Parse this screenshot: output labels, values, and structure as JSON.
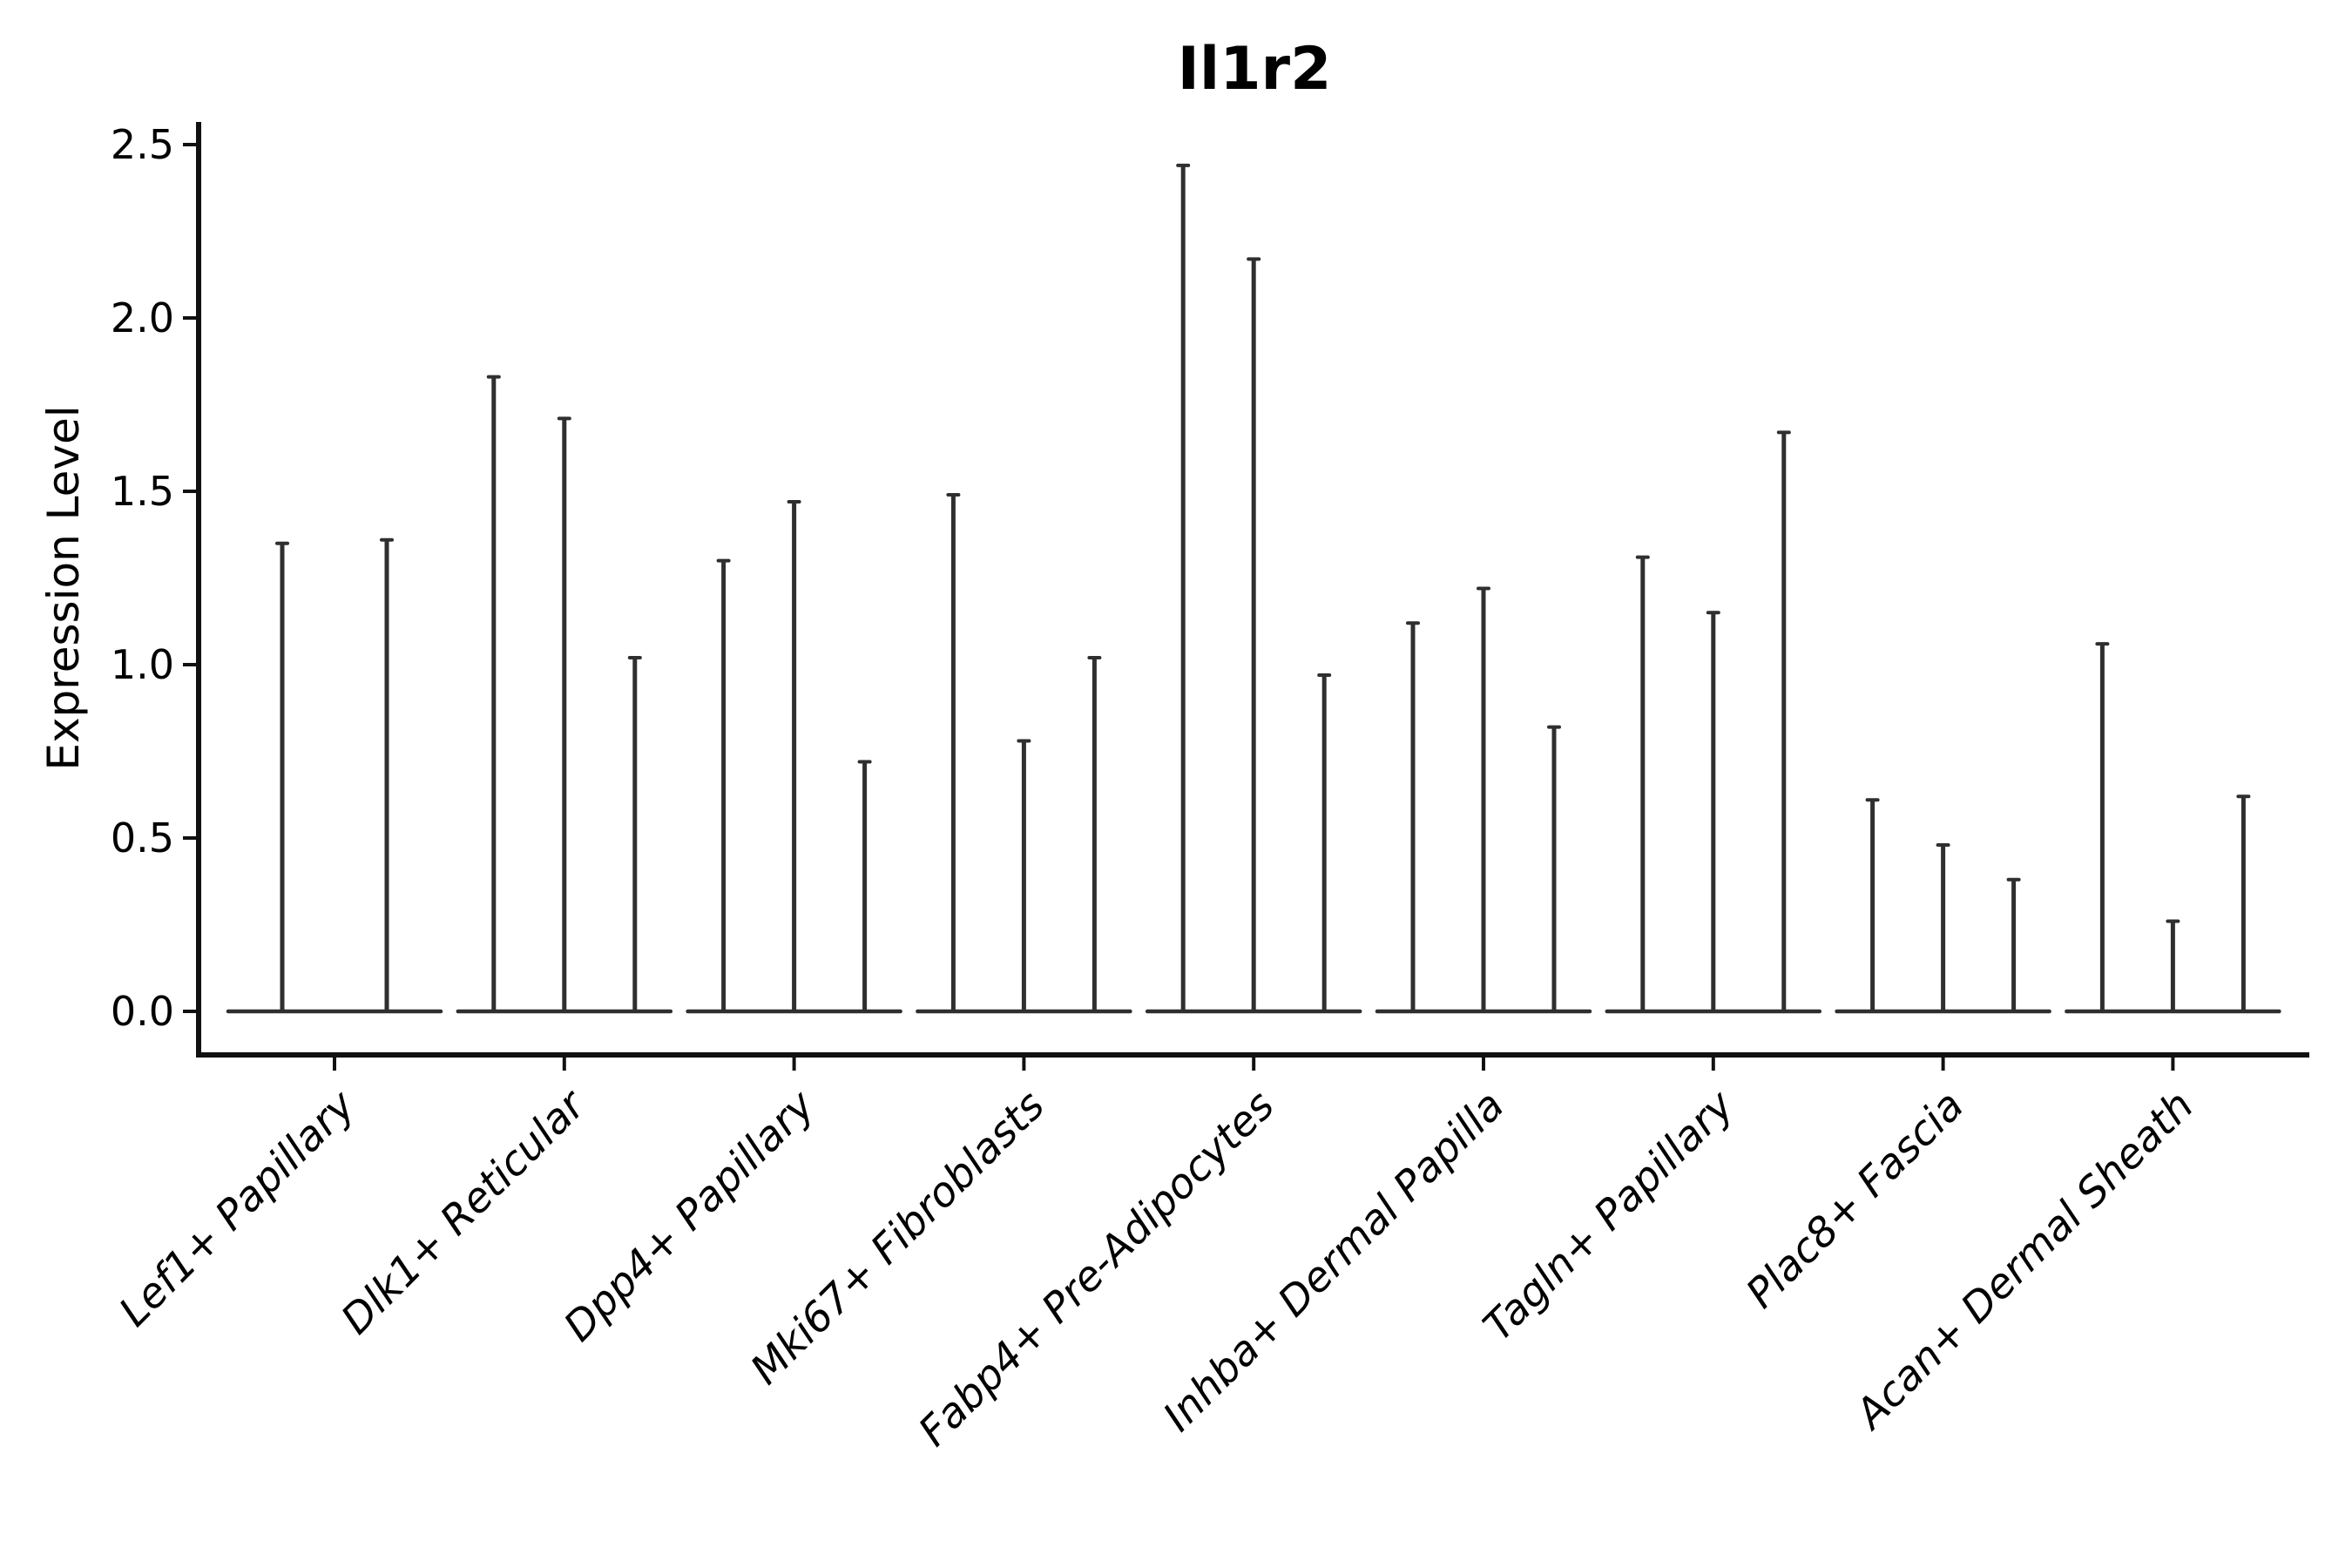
{
  "figure": {
    "title": "Il1r2",
    "y_axis": {
      "label": "Expression Level",
      "tick_labels": [
        "0.0",
        "0.5",
        "1.0",
        "1.5",
        "2.0",
        "2.5"
      ],
      "tick_values": [
        0,
        0.5,
        1.0,
        1.5,
        2.0,
        2.5
      ]
    },
    "colors": {
      "violin_line": "#2f2f2f",
      "axis": "#111111",
      "text": "#000000",
      "background": "#ffffff"
    }
  },
  "chart_data": {
    "type": "violin",
    "title": "Il1r2",
    "xlabel": "",
    "ylabel": "Expression Level",
    "ylim": [
      0,
      2.5
    ],
    "yticks": [
      0,
      0.5,
      1.0,
      1.5,
      2.0,
      2.5
    ],
    "grid": false,
    "legend": "none",
    "categories": [
      "Lef1+ Papillary",
      "Dlk1+ Reticular",
      "Dpp4+ Papillary",
      "Mki67+ Fibroblasts",
      "Fabp4+ Pre-Adipocytes",
      "Inhba+ Dermal Papilla",
      "Tagln+ Papillary",
      "Plac8+ Fascia",
      "Acan+ Dermal Sheath"
    ],
    "series": [
      {
        "category": "Lef1+ Papillary",
        "violin_max": [
          1.35,
          1.36
        ]
      },
      {
        "category": "Dlk1+ Reticular",
        "violin_max": [
          1.83,
          1.71,
          1.02
        ]
      },
      {
        "category": "Dpp4+ Papillary",
        "violin_max": [
          1.3,
          1.47,
          0.72
        ]
      },
      {
        "category": "Mki67+ Fibroblasts",
        "violin_max": [
          1.49,
          0.78,
          1.02
        ]
      },
      {
        "category": "Fabp4+ Pre-Adipocytes",
        "violin_max": [
          2.44,
          2.17,
          0.97
        ]
      },
      {
        "category": "Inhba+ Dermal Papilla",
        "violin_max": [
          1.12,
          1.22,
          0.82
        ]
      },
      {
        "category": "Tagln+ Papillary",
        "violin_max": [
          1.31,
          1.15,
          1.67
        ]
      },
      {
        "category": "Plac8+ Fascia",
        "violin_max": [
          0.61,
          0.48,
          0.38
        ]
      },
      {
        "category": "Acan+ Dermal Sheath",
        "violin_max": [
          1.06,
          0.26,
          0.62
        ]
      }
    ],
    "note": "Each violin has its probability mass concentrated at 0 (flat base line) with a thin vertical line reaching its maximum expression value. First category has 2 violins, all others have 3."
  }
}
